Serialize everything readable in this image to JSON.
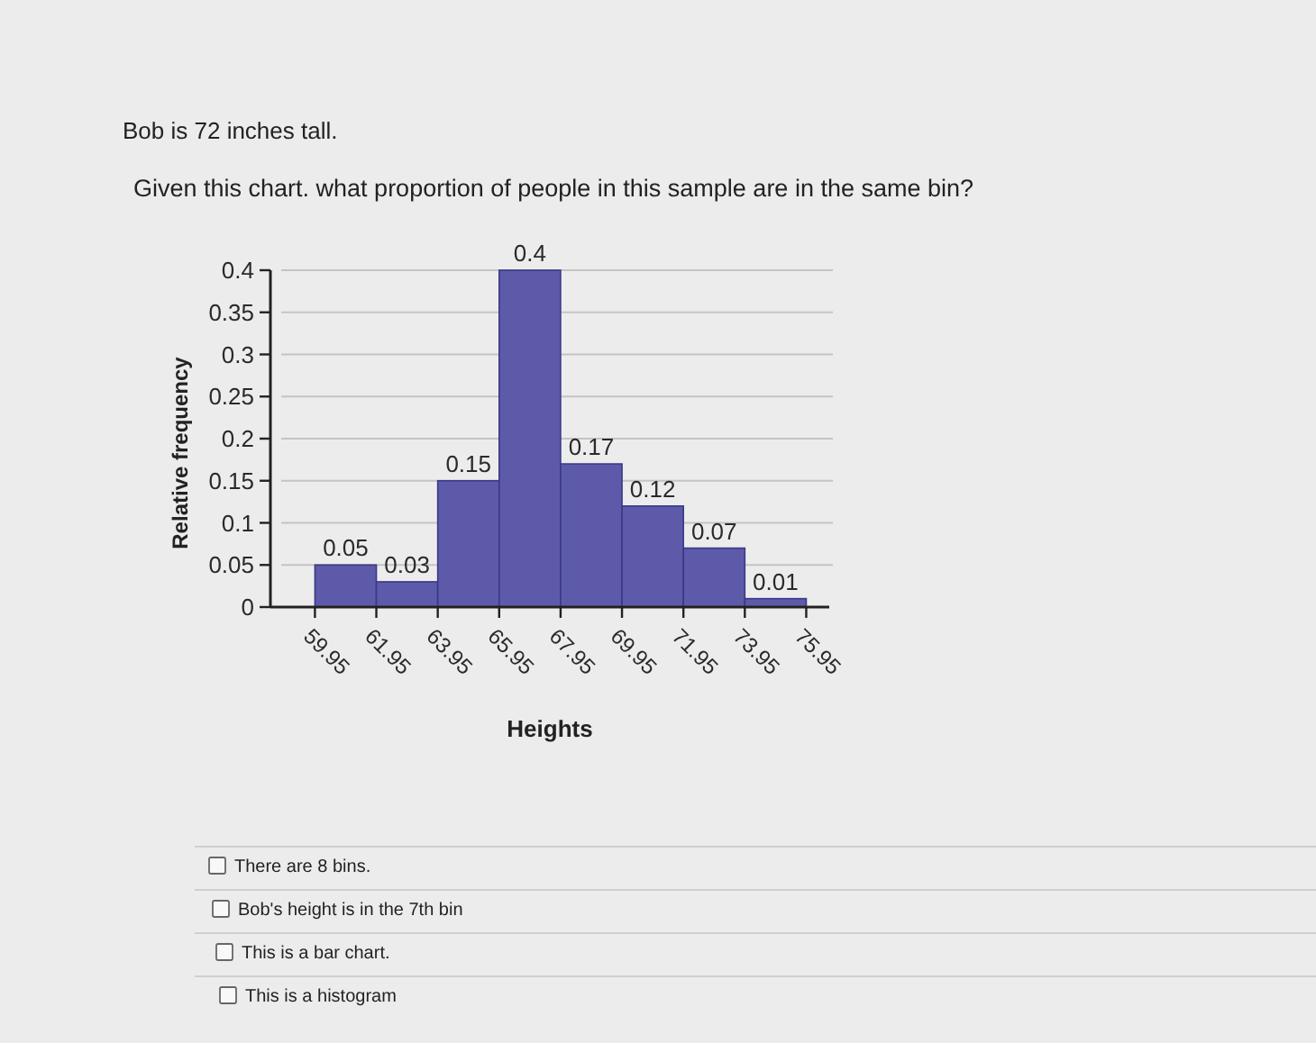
{
  "chart_data": {
    "type": "histogram",
    "title": "Bob is 72 inches tall.",
    "subtitle": "Given this chart. what proportion of people in this sample are in the same bin?",
    "xlabel": "Heights",
    "ylabel": "Relative frequency",
    "bins": [
      59.95,
      61.95,
      63.95,
      65.95,
      67.95,
      69.95,
      71.95,
      73.95,
      75.95
    ],
    "values": [
      0.05,
      0.03,
      0.15,
      0.4,
      0.17,
      0.12,
      0.07,
      0.01
    ],
    "color": "#5d5ba9",
    "data_labels": true,
    "xlim": [
      58.5,
      76.7
    ],
    "xticks": [
      59.95,
      61.95,
      63.95,
      65.95,
      67.95,
      69.95,
      71.95,
      73.95,
      75.95
    ],
    "ylim": [
      0,
      0.4
    ],
    "yticks": [
      0,
      0.05,
      0.1,
      0.15,
      0.2,
      0.25,
      0.3,
      0.35,
      0.4
    ],
    "grid": "y",
    "annotations": [
      "There are 8 bins.",
      "Bob's height is in the 7th bin",
      "This is a bar chart.",
      "This is a histogram"
    ]
  }
}
